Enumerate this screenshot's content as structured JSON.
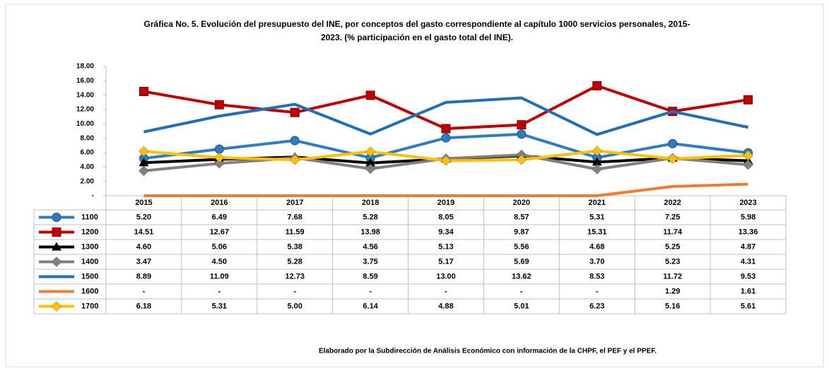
{
  "chart_data": {
    "type": "line",
    "title": "Gráfica No. 5. Evolución del presupuesto del INE, por conceptos del gasto correspondiente al capítulo 1000 servicios personales, 2015-",
    "subtitle": "2023. (% participación en el gasto total del INE).",
    "note": "Elaborado por la Subdirección de Análisis Económico con información de la CHPF, el PEF y el PPEF.",
    "categories": [
      "2015",
      "2016",
      "2017",
      "2018",
      "2019",
      "2020",
      "2021",
      "2022",
      "2023"
    ],
    "ylim": [
      0,
      18
    ],
    "yticks": [
      {
        "value": 0,
        "label": "-"
      },
      {
        "value": 2,
        "label": "2.00"
      },
      {
        "value": 4,
        "label": "4.00"
      },
      {
        "value": 6,
        "label": "6.00"
      },
      {
        "value": 8,
        "label": "8.00"
      },
      {
        "value": 10,
        "label": "10.00"
      },
      {
        "value": 12,
        "label": "12.00"
      },
      {
        "value": 14,
        "label": "14.00"
      },
      {
        "value": 16,
        "label": "16.00"
      },
      {
        "value": 18,
        "label": "18.00"
      }
    ],
    "series": [
      {
        "name": "1100",
        "color": "#2e7dc0",
        "marker": "circle",
        "values": [
          5.2,
          6.49,
          7.68,
          5.28,
          8.05,
          8.57,
          5.31,
          7.25,
          5.98
        ],
        "value_labels": [
          "5.20",
          "6.49",
          "7.68",
          "5.28",
          "8.05",
          "8.57",
          "5.31",
          "7.25",
          "5.98"
        ]
      },
      {
        "name": "1200",
        "color": "#c00000",
        "marker": "square",
        "values": [
          14.51,
          12.67,
          11.59,
          13.98,
          9.34,
          9.87,
          15.31,
          11.74,
          13.36
        ],
        "value_labels": [
          "14.51",
          "12.67",
          "11.59",
          "13.98",
          "9.34",
          "9.87",
          "15.31",
          "11.74",
          "13.36"
        ]
      },
      {
        "name": "1300",
        "color": "#000000",
        "marker": "triangle",
        "values": [
          4.6,
          5.06,
          5.38,
          4.56,
          5.13,
          5.56,
          4.68,
          5.25,
          4.87
        ],
        "value_labels": [
          "4.60",
          "5.06",
          "5.38",
          "4.56",
          "5.13",
          "5.56",
          "4.68",
          "5.25",
          "4.87"
        ]
      },
      {
        "name": "1400",
        "color": "#808080",
        "marker": "diamond",
        "values": [
          3.47,
          4.5,
          5.28,
          3.75,
          5.17,
          5.69,
          3.7,
          5.23,
          4.31
        ],
        "value_labels": [
          "3.47",
          "4.50",
          "5.28",
          "3.75",
          "5.17",
          "5.69",
          "3.70",
          "5.23",
          "4.31"
        ]
      },
      {
        "name": "1500",
        "color": "#1f6fb8",
        "marker": "none",
        "values": [
          8.89,
          11.09,
          12.73,
          8.59,
          13.0,
          13.62,
          8.53,
          11.72,
          9.53
        ],
        "value_labels": [
          "8.89",
          "11.09",
          "12.73",
          "8.59",
          "13.00",
          "13.62",
          "8.53",
          "11.72",
          "9.53"
        ]
      },
      {
        "name": "1600",
        "color": "#ed7d31",
        "marker": "none",
        "values": [
          0,
          0,
          0,
          0,
          0,
          0,
          0,
          1.29,
          1.61
        ],
        "value_labels": [
          "-",
          "-",
          "-",
          "-",
          "-",
          "-",
          "-",
          "1.29",
          "1.61"
        ]
      },
      {
        "name": "1700",
        "color": "#ffc000",
        "marker": "diamond",
        "values": [
          6.18,
          5.31,
          5.0,
          6.14,
          4.88,
          5.01,
          6.23,
          5.16,
          5.61
        ],
        "value_labels": [
          "6.18",
          "5.31",
          "5.00",
          "6.14",
          "4.88",
          "5.01",
          "6.23",
          "5.16",
          "5.61"
        ]
      }
    ]
  }
}
